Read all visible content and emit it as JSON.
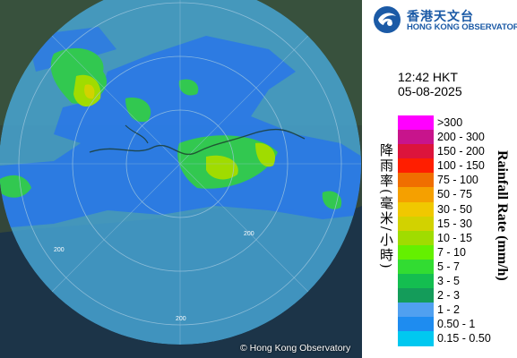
{
  "map": {
    "copyright": "© Hong Kong Observatory",
    "range_rings": [
      "200",
      "200",
      "200"
    ]
  },
  "header": {
    "org_name_zh": "香港天文台",
    "org_name_en": "HONG KONG OBSERVATORY",
    "emblem_icon": "hko-emblem-icon"
  },
  "timestamp": {
    "time": "12:42 HKT",
    "date": "05-08-2025"
  },
  "legend": {
    "title_zh": "降雨率(毫米/小時)",
    "title_en": "Rainfall Rate (mm/h)",
    "items": [
      {
        "label": ">300",
        "color": "#ff00ff"
      },
      {
        "label": "200 - 300",
        "color": "#c8148c"
      },
      {
        "label": "150 - 200",
        "color": "#dc143c"
      },
      {
        "label": "100 - 150",
        "color": "#ff1e00"
      },
      {
        "label": "75 - 100",
        "color": "#f06e00"
      },
      {
        "label": "50 - 75",
        "color": "#f5a000"
      },
      {
        "label": "30 - 50",
        "color": "#f0c800"
      },
      {
        "label": "15 - 30",
        "color": "#d2d200"
      },
      {
        "label": "10 - 15",
        "color": "#a0dc00"
      },
      {
        "label": "7 - 10",
        "color": "#64f000"
      },
      {
        "label": "5 - 7",
        "color": "#32dc32"
      },
      {
        "label": "3 - 5",
        "color": "#14be50"
      },
      {
        "label": "2 - 3",
        "color": "#149c5a"
      },
      {
        "label": "1 - 2",
        "color": "#50a0f0"
      },
      {
        "label": "0.50 - 1",
        "color": "#1e8cf0"
      },
      {
        "label": "0.15 - 0.50",
        "color": "#00c8f0"
      }
    ]
  }
}
